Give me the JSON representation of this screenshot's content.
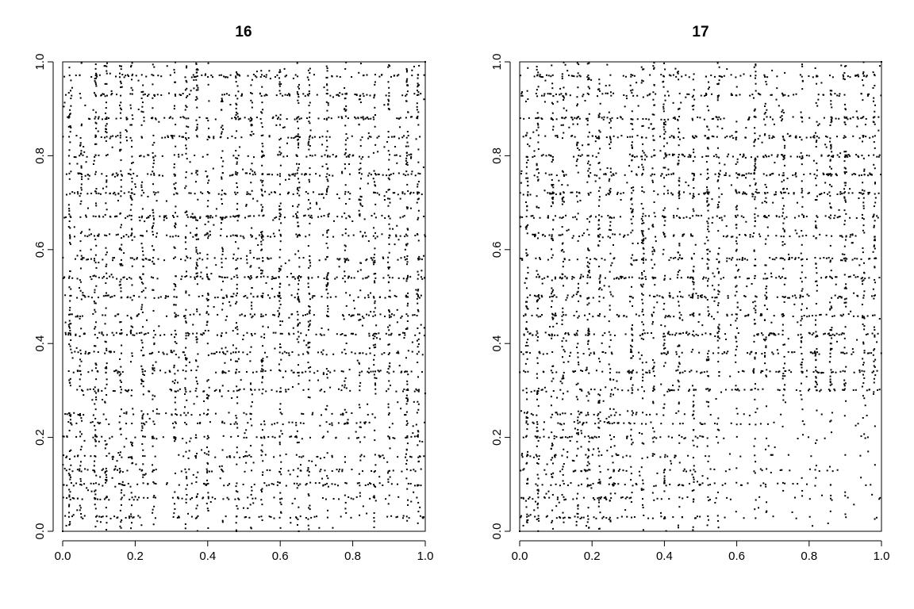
{
  "chart_data": [
    {
      "type": "scatter",
      "title": "16",
      "xlabel": "",
      "ylabel": "",
      "xlim": [
        0,
        1
      ],
      "ylim": [
        0,
        1
      ],
      "x_ticks": [
        "0.0",
        "0.2",
        "0.4",
        "0.6",
        "0.8",
        "1.0"
      ],
      "y_ticks": [
        "0.0",
        "0.2",
        "0.4",
        "0.6",
        "0.8",
        "1.0"
      ],
      "grid": false,
      "marker": "dot",
      "density_note": "dense recurrence-style point cloud; dense blocks at x,y in [0.55,0.88] and x,y in [0.3,0.55]; empty vertical band near x≈0.26-0.3 below y≈0.3",
      "seed": 16,
      "points": [
        [
          0.0,
          0.0
        ],
        [
          0.01,
          0.012
        ],
        [
          0.02,
          0.02
        ],
        [
          0.03,
          0.035
        ],
        [
          0.04,
          0.045
        ],
        [
          0.05,
          0.05
        ],
        [
          0.08,
          0.085
        ],
        [
          0.1,
          0.1
        ],
        [
          0.12,
          0.12
        ],
        [
          0.15,
          0.15
        ],
        [
          0.17,
          0.18
        ],
        [
          0.2,
          0.2
        ],
        [
          0.22,
          0.22
        ],
        [
          0.24,
          0.24
        ],
        [
          0.26,
          0.26
        ],
        [
          0.3,
          0.3
        ],
        [
          0.35,
          0.36
        ],
        [
          0.4,
          0.4
        ],
        [
          0.45,
          0.45
        ],
        [
          0.5,
          0.5
        ],
        [
          0.55,
          0.55
        ],
        [
          0.6,
          0.6
        ],
        [
          0.65,
          0.65
        ],
        [
          0.7,
          0.7
        ],
        [
          0.73,
          0.73
        ],
        [
          0.8,
          0.8
        ],
        [
          0.85,
          0.84
        ],
        [
          0.9,
          0.9
        ],
        [
          0.95,
          0.95
        ],
        [
          1.0,
          1.0
        ]
      ]
    },
    {
      "type": "scatter",
      "title": "17",
      "xlabel": "",
      "ylabel": "",
      "xlim": [
        0,
        1
      ],
      "ylim": [
        0,
        1
      ],
      "x_ticks": [
        "0.0",
        "0.2",
        "0.4",
        "0.6",
        "0.8",
        "1.0"
      ],
      "y_ticks": [
        "0.0",
        "0.2",
        "0.4",
        "0.6",
        "0.8",
        "1.0"
      ],
      "grid": false,
      "marker": "dot",
      "density_note": "dense recurrence-style point cloud; dense blocks at x,y in [0.3,0.55]; sparse region x in [0.55,1.0], y in [0,0.3]",
      "seed": 17,
      "points": [
        [
          0.0,
          0.0
        ],
        [
          0.01,
          0.012
        ],
        [
          0.02,
          0.02
        ],
        [
          0.03,
          0.035
        ],
        [
          0.04,
          0.045
        ],
        [
          0.05,
          0.05
        ],
        [
          0.08,
          0.085
        ],
        [
          0.1,
          0.1
        ],
        [
          0.12,
          0.12
        ],
        [
          0.15,
          0.15
        ],
        [
          0.17,
          0.18
        ],
        [
          0.2,
          0.2
        ],
        [
          0.22,
          0.22
        ],
        [
          0.24,
          0.24
        ],
        [
          0.26,
          0.26
        ],
        [
          0.3,
          0.3
        ],
        [
          0.35,
          0.36
        ],
        [
          0.4,
          0.4
        ],
        [
          0.45,
          0.45
        ],
        [
          0.5,
          0.5
        ],
        [
          0.55,
          0.55
        ],
        [
          0.6,
          0.6
        ],
        [
          0.65,
          0.65
        ],
        [
          0.7,
          0.7
        ],
        [
          0.73,
          0.73
        ],
        [
          0.8,
          0.8
        ],
        [
          0.85,
          0.84
        ],
        [
          0.9,
          0.9
        ],
        [
          0.95,
          0.95
        ],
        [
          1.0,
          1.0
        ]
      ]
    }
  ]
}
